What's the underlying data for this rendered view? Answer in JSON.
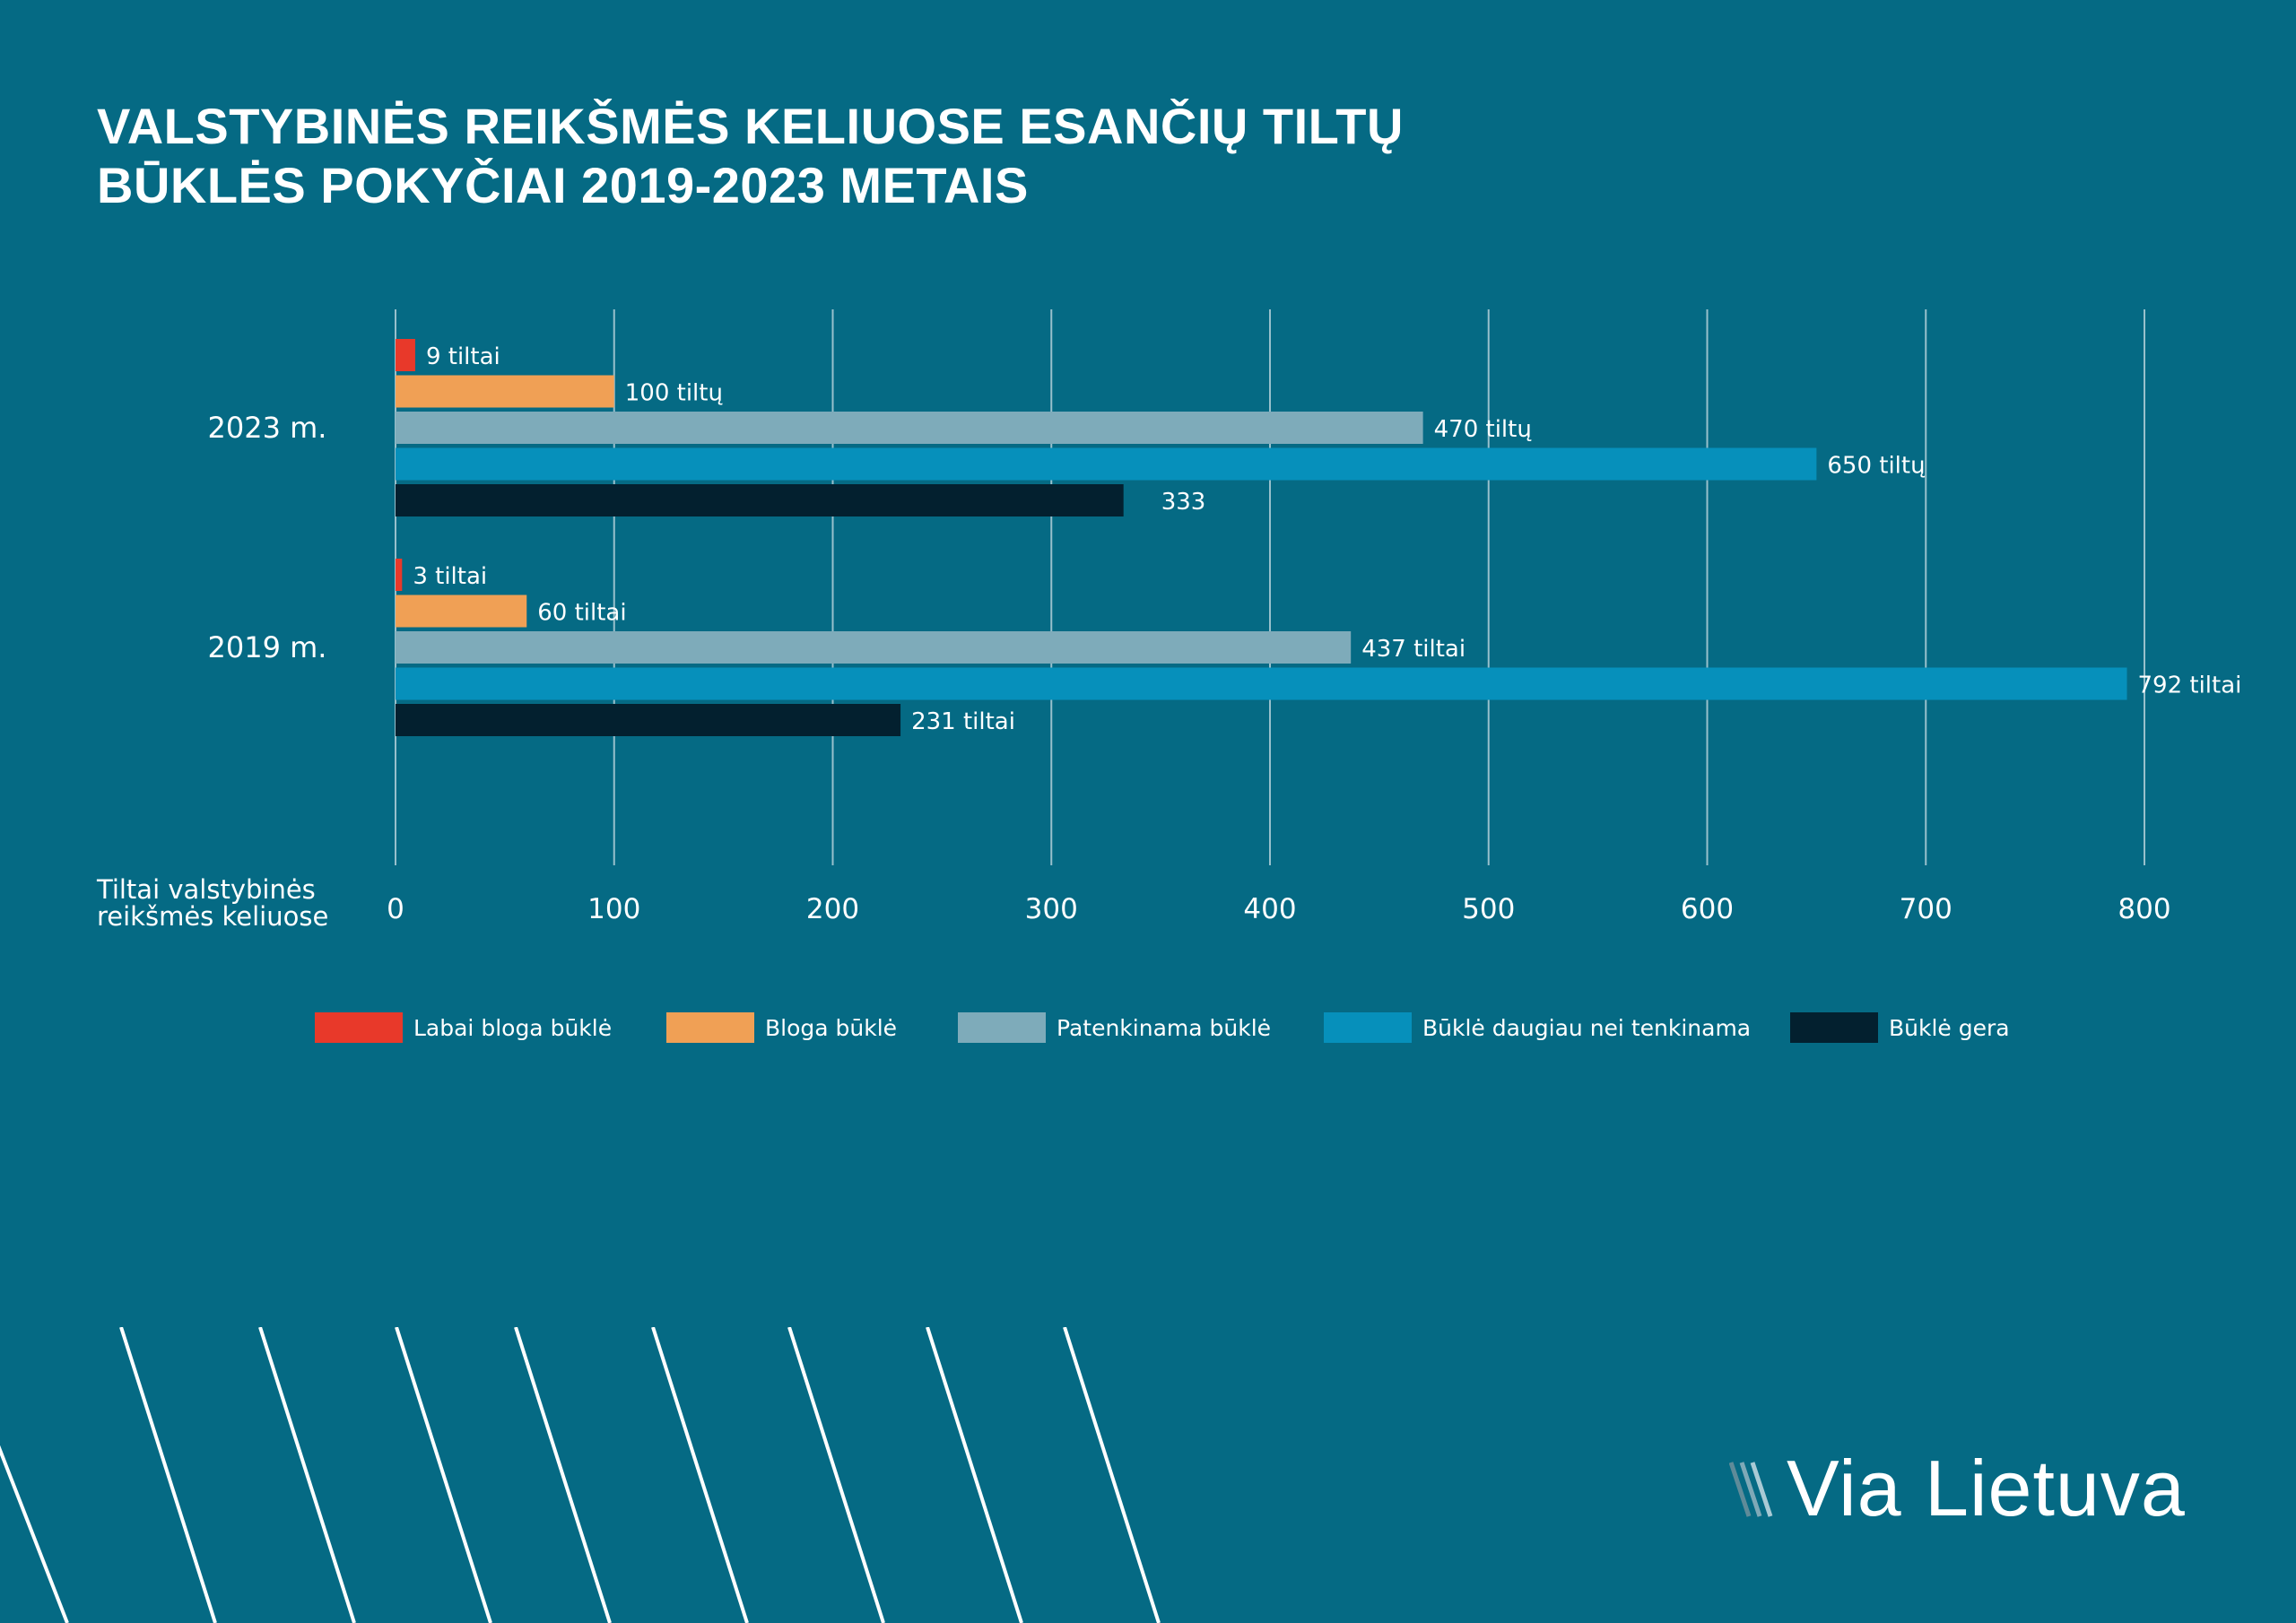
{
  "title": {
    "line1": "VALSTYBINĖS REIKŠMĖS KELIUOSE ESANČIŲ TILTŲ",
    "line2": "BŪKLĖS POKYČIAI 2019-2023 METAIS"
  },
  "chart_data": {
    "type": "bar",
    "orientation": "horizontal",
    "title": "VALSTYBINĖS REIKŠMĖS KELIUOSE ESANČIŲ TILTŲ BŪKLĖS POKYČIAI 2019-2023 METAIS",
    "xlabel_lines": [
      "Tiltai valstybinės",
      "reikšmės keliuose"
    ],
    "xlim": [
      0,
      800
    ],
    "xticks": [
      0,
      100,
      200,
      300,
      400,
      500,
      600,
      700,
      800
    ],
    "grid": true,
    "categories": [
      "2023 m.",
      "2019 m."
    ],
    "series": [
      {
        "name": "Labai bloga būklė",
        "color": "#e8392a",
        "values": [
          9,
          3
        ],
        "labels": [
          "9 tiltai",
          "3 tiltai"
        ]
      },
      {
        "name": "Bloga būklė",
        "color": "#f0a055",
        "values": [
          100,
          60
        ],
        "labels": [
          "100 tiltų",
          "60 tiltai"
        ]
      },
      {
        "name": "Patenkinama būklė",
        "color": "#7eabba",
        "values": [
          470,
          437
        ],
        "labels": [
          "470 tiltų",
          "437 tiltai"
        ]
      },
      {
        "name": "Būklė daugiau nei tenkinama",
        "color": "#0690bb",
        "values": [
          650,
          792
        ],
        "labels": [
          "650 tiltų",
          "792 tiltai"
        ]
      },
      {
        "name": "Būklė gera",
        "color": "#03202f",
        "values": [
          333,
          231
        ],
        "labels": [
          "333",
          "231 tiltai"
        ]
      }
    ],
    "legend_position": "bottom"
  },
  "logo": {
    "text": "Via Lietuva"
  }
}
